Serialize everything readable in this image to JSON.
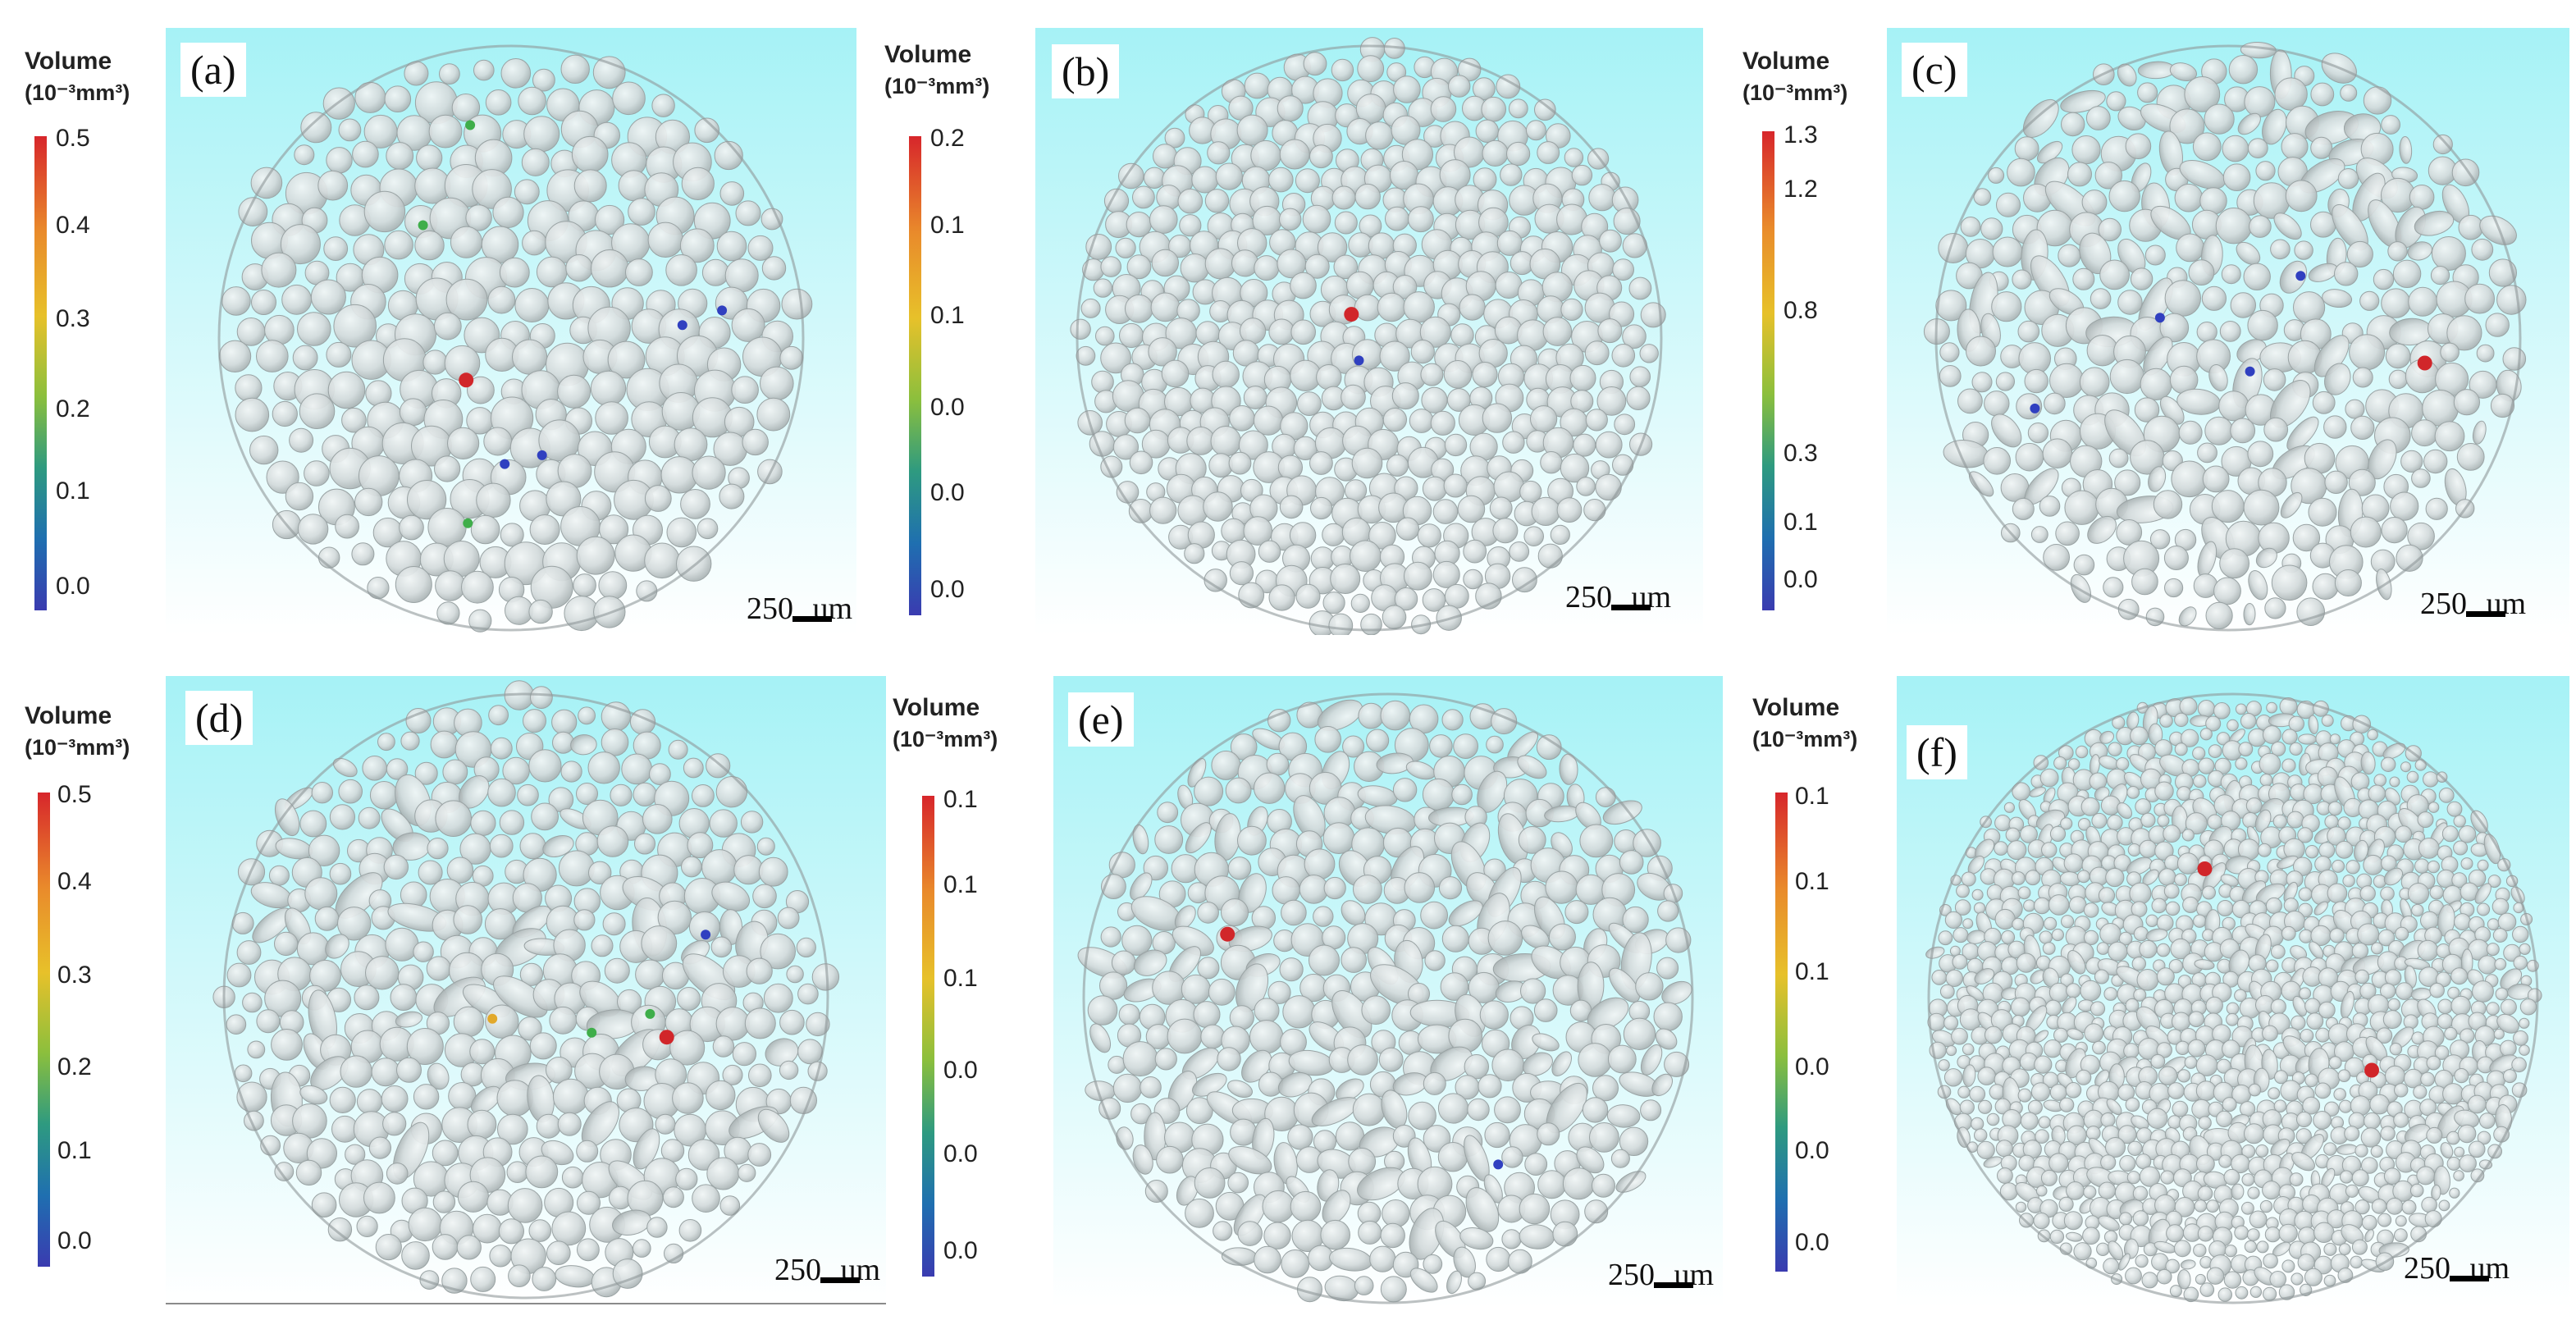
{
  "panels": [
    {
      "label": "(a)",
      "scale_bar": "250 um",
      "legend": {
        "title": "Volume",
        "unit": "(10⁻³mm³)",
        "ticks": [
          "0.5",
          "0.4",
          "0.3",
          "0.2",
          "0.1",
          "0.0"
        ]
      },
      "colored_voids": [
        "red",
        "green",
        "green",
        "green",
        "blue",
        "blue",
        "blue",
        "blue"
      ]
    },
    {
      "label": "(b)",
      "scale_bar": "250 um",
      "legend": {
        "title": "Volume",
        "unit": "(10⁻³mm³)",
        "ticks": [
          "0.2",
          "0.1",
          "0.1",
          "0.0",
          "0.0",
          "0.0"
        ]
      },
      "colored_voids": [
        "red",
        "blue"
      ]
    },
    {
      "label": "(c)",
      "scale_bar": "250 um",
      "legend": {
        "title": "Volume",
        "unit": "(10⁻³mm³)",
        "ticks": [
          "1.3",
          "1.2",
          "0.8",
          "0.3",
          "0.1",
          "0.0"
        ]
      },
      "colored_voids": [
        "red",
        "blue",
        "blue",
        "blue",
        "blue"
      ]
    },
    {
      "label": "(d)",
      "scale_bar": "250 um",
      "legend": {
        "title": "Volume",
        "unit": "(10⁻³mm³)",
        "ticks": [
          "0.5",
          "0.4",
          "0.3",
          "0.2",
          "0.1",
          "0.0"
        ]
      },
      "colored_voids": [
        "red",
        "orange",
        "green",
        "green",
        "blue"
      ]
    },
    {
      "label": "(e)",
      "scale_bar": "250 um",
      "legend": {
        "title": "Volume",
        "unit": "(10⁻³mm³)",
        "ticks": [
          "0.1",
          "0.1",
          "0.1",
          "0.0",
          "0.0",
          "0.0"
        ]
      },
      "colored_voids": [
        "red",
        "blue"
      ]
    },
    {
      "label": "(f)",
      "scale_bar": "250 um",
      "legend": {
        "title": "Volume",
        "unit": "(10⁻³mm³)",
        "ticks": [
          "0.1",
          "0.1",
          "0.1",
          "0.0",
          "0.0",
          "0.0"
        ]
      },
      "colored_voids": [
        "red",
        "red"
      ]
    }
  ],
  "colors": {
    "background_top": "#a6f2f6",
    "background_bottom": "#ffffff",
    "sphere": "#d3dadb",
    "sphere_edge": "#9aa3a4",
    "void_red": "#d1262a",
    "void_orange": "#e2a92b",
    "void_green": "#3fae4a",
    "void_blue": "#3040c0"
  },
  "image_description": "Six 3D CT renderings of packed spherical powder particles inside circular cross-sections, each with a colour-scaled pore volume legend"
}
